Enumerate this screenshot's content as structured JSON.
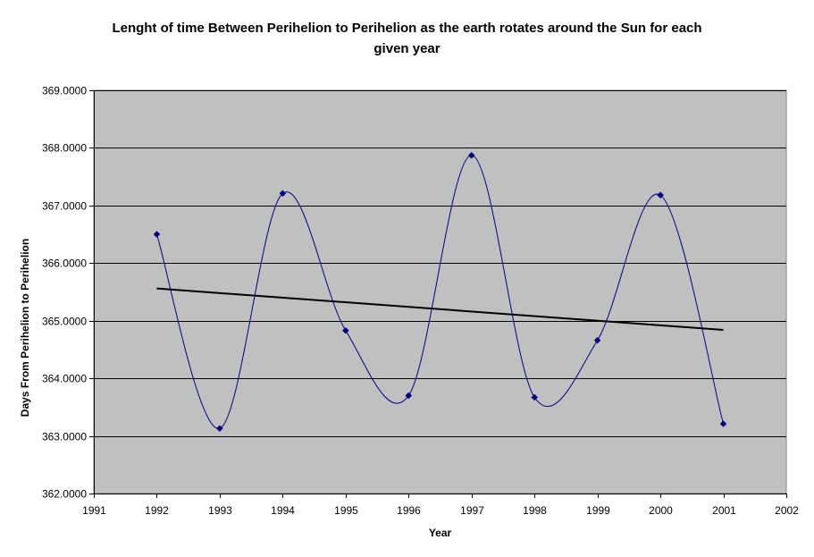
{
  "chart_data": {
    "type": "scatter",
    "title_lines": [
      "Lenght of time Between Perihelion to Perihelion as the earth rotates around the Sun for each",
      "given year"
    ],
    "xlabel": "Year",
    "ylabel": "Days From Perihelion to Perihelion",
    "xlim": [
      1991,
      2002
    ],
    "ylim": [
      362,
      369
    ],
    "x_ticks": [
      "1991",
      "1992",
      "1993",
      "1994",
      "1995",
      "1996",
      "1997",
      "1998",
      "1999",
      "2000",
      "2001",
      "2002"
    ],
    "y_ticks": [
      "362.0000",
      "363.0000",
      "364.0000",
      "365.0000",
      "366.0000",
      "367.0000",
      "368.0000",
      "369.0000"
    ],
    "grid": "horizontal major gridlines",
    "legend": "none",
    "series": [
      {
        "x": [
          1992,
          1993,
          1994,
          1995,
          1996,
          1997,
          1998,
          1999,
          2000,
          2001
        ],
        "y": [
          366.5,
          363.13,
          367.21,
          364.83,
          363.7,
          367.87,
          363.67,
          364.66,
          367.18,
          363.21
        ],
        "line": "smoothed",
        "color": "#000080",
        "marker": "diamond"
      }
    ],
    "trendline": {
      "type": "linear",
      "x": [
        1992,
        2001
      ],
      "y": [
        365.56,
        364.84
      ],
      "color": "#000000"
    },
    "plot_background": "#c0c0c0",
    "gridline_color": "#000000"
  }
}
